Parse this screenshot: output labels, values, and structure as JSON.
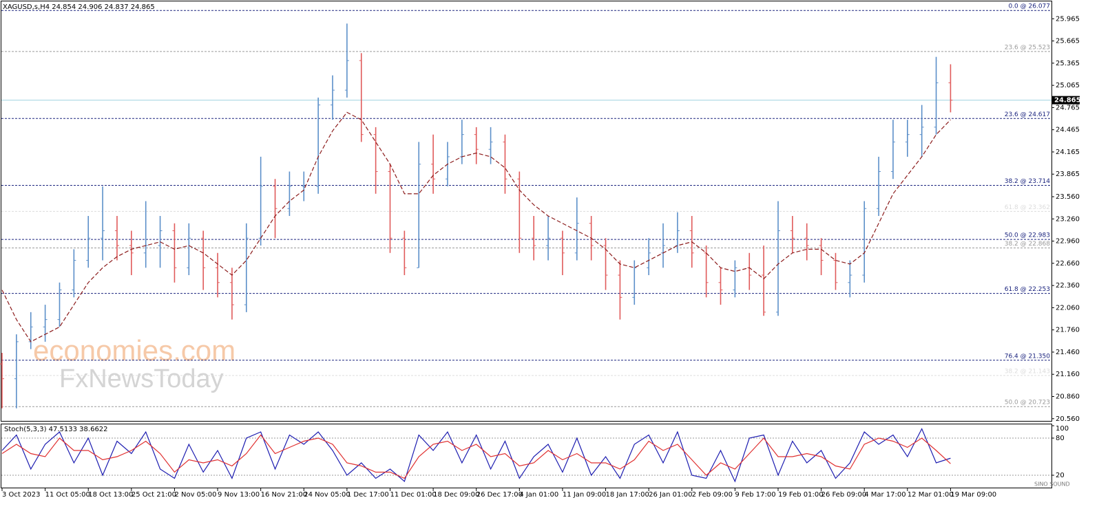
{
  "chart_data": [
    {
      "type": "ohlc",
      "title": "XAGUSD,s,H4  24.854 24.906 24.837 24.865",
      "categories": [
        "3 Oct 2023",
        null,
        null,
        "11 Oct 05:00",
        null,
        null,
        "18 Oct 13:00",
        null,
        null,
        "25 Oct 21:00",
        null,
        null,
        "2 Nov 05:00",
        null,
        null,
        "9 Nov 13:00",
        null,
        null,
        "16 Nov 21:00",
        null,
        null,
        "24 Nov 05:00",
        null,
        null,
        "1 Dec 17:00",
        null,
        null,
        "11 Dec 01:00",
        null,
        null,
        "18 Dec 09:00",
        null,
        null,
        "26 Dec 17:00",
        null,
        null,
        "4 Jan 01:00",
        null,
        null,
        "11 Jan 09:00",
        null,
        null,
        "18 Jan 17:00",
        null,
        null,
        "26 Jan 01:00",
        null,
        null,
        "2 Feb 09:00",
        null,
        null,
        "9 Feb 17:00",
        null,
        null,
        "19 Feb 01:00",
        null,
        null,
        "26 Feb 09:00",
        null,
        null,
        "4 Mar 17:00",
        null,
        null,
        "12 Mar 01:00",
        null,
        null,
        "19 Mar 09:00"
      ],
      "open": [
        21.3,
        21.1,
        21.6,
        21.8,
        21.9,
        22.3,
        22.7,
        23.0,
        23.1,
        22.9,
        22.8,
        22.9,
        23.1,
        22.6,
        23.0,
        22.6,
        22.4,
        22.1,
        23.0,
        23.7,
        23.4,
        23.7,
        23.7,
        24.8,
        25.0,
        25.4,
        24.4,
        23.9,
        23.0,
        22.6,
        24.0,
        23.8,
        24.1,
        24.4,
        24.2,
        24.3,
        23.8,
        23.0,
        22.9,
        23.0,
        22.8,
        23.2,
        22.9,
        22.5,
        22.2,
        22.6,
        22.8,
        22.9,
        23.1,
        22.8,
        22.4,
        22.3,
        22.6,
        22.5,
        22.0,
        23.1,
        23.0,
        22.9,
        22.7,
        22.4,
        22.5,
        23.4,
        23.9,
        24.3,
        24.4,
        24.5,
        25.1
      ],
      "high": [
        21.45,
        21.7,
        22.0,
        22.1,
        22.4,
        22.85,
        23.3,
        23.7,
        23.3,
        23.1,
        23.5,
        23.3,
        23.2,
        23.2,
        23.1,
        22.8,
        22.6,
        23.2,
        24.1,
        23.8,
        23.9,
        23.9,
        24.9,
        25.2,
        25.9,
        25.5,
        24.5,
        24.0,
        23.1,
        24.3,
        24.4,
        24.3,
        24.6,
        24.5,
        24.5,
        24.4,
        23.9,
        23.3,
        23.3,
        23.1,
        23.55,
        23.3,
        23.0,
        22.7,
        22.7,
        23.0,
        23.2,
        23.35,
        23.3,
        22.9,
        22.6,
        22.7,
        22.8,
        22.9,
        23.5,
        23.3,
        23.2,
        23.0,
        22.8,
        22.7,
        23.5,
        24.1,
        24.6,
        24.6,
        24.8,
        25.45,
        25.35
      ],
      "low": [
        20.7,
        20.7,
        21.5,
        21.6,
        21.8,
        22.2,
        22.6,
        22.7,
        22.7,
        22.5,
        22.6,
        22.6,
        22.4,
        22.5,
        22.3,
        22.2,
        21.9,
        22.0,
        22.9,
        23.0,
        23.3,
        23.5,
        23.6,
        24.6,
        24.9,
        24.3,
        23.6,
        22.8,
        22.5,
        22.6,
        23.6,
        23.7,
        24.0,
        24.0,
        24.0,
        23.6,
        22.8,
        22.7,
        22.7,
        22.5,
        22.7,
        22.7,
        22.3,
        21.9,
        22.1,
        22.5,
        22.6,
        22.8,
        22.6,
        22.2,
        22.1,
        22.2,
        22.3,
        21.95,
        21.95,
        22.8,
        22.7,
        22.5,
        22.3,
        22.2,
        22.4,
        23.3,
        23.8,
        24.1,
        24.1,
        24.4,
        24.7
      ],
      "close": [
        21.1,
        21.6,
        21.8,
        21.9,
        22.3,
        22.7,
        23.0,
        23.1,
        22.9,
        22.8,
        22.9,
        23.1,
        22.6,
        23.0,
        22.6,
        22.4,
        22.1,
        23.0,
        23.7,
        23.4,
        23.7,
        23.7,
        24.8,
        25.0,
        25.4,
        24.4,
        23.9,
        23.0,
        22.6,
        24.0,
        23.8,
        24.1,
        24.4,
        24.2,
        24.3,
        23.8,
        23.0,
        22.9,
        23.0,
        22.8,
        23.2,
        22.9,
        22.5,
        22.2,
        22.6,
        22.8,
        22.9,
        23.1,
        22.8,
        22.4,
        22.3,
        22.6,
        22.5,
        22.0,
        23.1,
        23.0,
        22.9,
        22.7,
        22.4,
        22.5,
        23.4,
        23.9,
        24.3,
        24.4,
        24.5,
        25.1,
        24.865
      ],
      "up_color": "#5b8fc9",
      "down_color": "#e05a5a",
      "ma": {
        "color": "#8b1a1a",
        "values": [
          22.3,
          21.9,
          21.6,
          21.7,
          21.8,
          22.1,
          22.4,
          22.6,
          22.75,
          22.85,
          22.9,
          22.95,
          22.85,
          22.9,
          22.8,
          22.65,
          22.5,
          22.7,
          23.0,
          23.3,
          23.5,
          23.65,
          24.1,
          24.45,
          24.7,
          24.6,
          24.3,
          24.0,
          23.6,
          23.6,
          23.85,
          24.0,
          24.1,
          24.15,
          24.1,
          23.95,
          23.65,
          23.45,
          23.3,
          23.2,
          23.1,
          23.0,
          22.85,
          22.65,
          22.6,
          22.7,
          22.8,
          22.9,
          22.95,
          22.8,
          22.6,
          22.55,
          22.6,
          22.45,
          22.65,
          22.8,
          22.85,
          22.85,
          22.7,
          22.65,
          22.8,
          23.2,
          23.6,
          23.85,
          24.1,
          24.4,
          24.6
        ]
      },
      "ylim": [
        20.53,
        26.2
      ],
      "yticks": [
        25.965,
        25.665,
        25.365,
        25.065,
        24.765,
        24.465,
        24.165,
        23.865,
        {
          "value": 23.56,
          "label": "23.560"
        },
        {
          "value": 23.26,
          "label": "23.260"
        },
        {
          "value": 22.96,
          "label": "22.960"
        },
        {
          "value": 22.66,
          "label": "22.660"
        },
        {
          "value": 22.36,
          "label": "22.360"
        },
        {
          "value": 22.06,
          "label": "22.060"
        },
        {
          "value": 21.76,
          "label": "21.760"
        },
        {
          "value": 21.46,
          "label": "21.460"
        },
        {
          "value": 21.16,
          "label": "21.160"
        },
        {
          "value": 20.86,
          "label": "20.860"
        },
        {
          "value": 20.56,
          "label": "20.560"
        }
      ],
      "levels": [
        {
          "label": "0.0 @ 26.077",
          "value": 26.077,
          "color": "#1a237e"
        },
        {
          "label": "23.6 @ 25.523",
          "value": 25.523,
          "color": "#9a9a9a"
        },
        {
          "label": "23.6 @ 24.617",
          "value": 24.617,
          "color": "#1a237e"
        },
        {
          "label": "38.2 @ 23.714",
          "value": 23.714,
          "color": "#1a237e"
        },
        {
          "label": "61.8 @ 23.362",
          "value": 23.362,
          "color": "#dcdcdc"
        },
        {
          "label": "50.0 @ 22.983",
          "value": 22.983,
          "color": "#1a237e"
        },
        {
          "label": "38.2 @ 22.868",
          "value": 22.868,
          "color": "#9a9a9a"
        },
        {
          "label": "61.8 @ 22.253",
          "value": 22.253,
          "color": "#1a237e"
        },
        {
          "label": "76.4 @ 21.350",
          "value": 21.35,
          "color": "#1a237e"
        },
        {
          "label": "38.2 @ 21.143",
          "value": 21.143,
          "color": "#dcdcdc"
        },
        {
          "label": "50.0 @ 20.723",
          "value": 20.723,
          "color": "#9a9a9a"
        }
      ],
      "last_price": 24.865,
      "last_price_color": "#9fd3e0"
    },
    {
      "type": "line",
      "title": "Stoch(5,3,3) 47.5133 38.6622",
      "series": [
        {
          "color": "#1c1cb0",
          "values": [
            60,
            85,
            30,
            70,
            90,
            40,
            80,
            20,
            75,
            55,
            90,
            30,
            15,
            70,
            25,
            60,
            15,
            80,
            90,
            30,
            85,
            70,
            90,
            60,
            20,
            40,
            15,
            30,
            10,
            85,
            60,
            90,
            40,
            85,
            30,
            75,
            15,
            50,
            70,
            25,
            80,
            20,
            50,
            15,
            70,
            85,
            40,
            90,
            20,
            15,
            60,
            10,
            80,
            85,
            20,
            75,
            40,
            60,
            15,
            40,
            90,
            70,
            85,
            50,
            95,
            40,
            47.5
          ]
        },
        {
          "color": "#e03030",
          "values": [
            55,
            70,
            55,
            50,
            80,
            60,
            60,
            45,
            50,
            60,
            75,
            55,
            25,
            45,
            40,
            45,
            35,
            55,
            85,
            55,
            65,
            75,
            80,
            70,
            40,
            35,
            25,
            25,
            15,
            50,
            70,
            75,
            60,
            70,
            50,
            55,
            35,
            40,
            60,
            45,
            55,
            40,
            40,
            30,
            45,
            75,
            60,
            70,
            45,
            20,
            40,
            30,
            55,
            80,
            50,
            50,
            55,
            50,
            35,
            30,
            70,
            80,
            75,
            65,
            80,
            60,
            38.7
          ]
        }
      ],
      "ylim": [
        0,
        100
      ],
      "yticks": [
        100,
        80,
        20
      ]
    }
  ],
  "watermarks": [
    "economies.com",
    "FxNewsToday"
  ],
  "logo": "SINO SOUND"
}
